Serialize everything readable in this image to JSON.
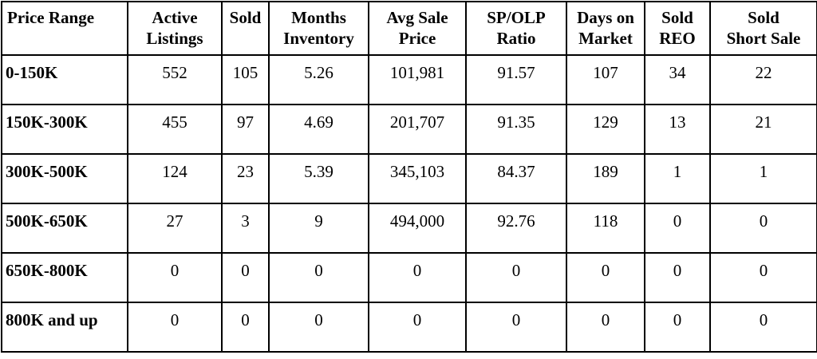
{
  "table": {
    "headers": [
      [
        "Price Range"
      ],
      [
        "Active",
        "Listings"
      ],
      [
        "Sold"
      ],
      [
        "Months",
        "Inventory"
      ],
      [
        "Avg Sale",
        "Price"
      ],
      [
        "SP/OLP",
        "Ratio"
      ],
      [
        "Days on",
        "Market"
      ],
      [
        "Sold",
        "REO"
      ],
      [
        "Sold",
        "Short Sale"
      ]
    ],
    "rows": [
      [
        "0-150K",
        "552",
        "105",
        "5.26",
        "101,981",
        "91.57",
        "107",
        "34",
        "22"
      ],
      [
        "150K-300K",
        "455",
        "97",
        "4.69",
        "201,707",
        "91.35",
        "129",
        "13",
        "21"
      ],
      [
        "300K-500K",
        "124",
        "23",
        "5.39",
        "345,103",
        "84.37",
        "189",
        "1",
        "1"
      ],
      [
        "500K-650K",
        "27",
        "3",
        "9",
        "494,000",
        "92.76",
        "118",
        "0",
        "0"
      ],
      [
        "650K-800K",
        "0",
        "0",
        "0",
        "0",
        "0",
        "0",
        "0",
        "0"
      ],
      [
        "800K and up",
        "0",
        "0",
        "0",
        "0",
        "0",
        "0",
        "0",
        "0"
      ]
    ]
  }
}
